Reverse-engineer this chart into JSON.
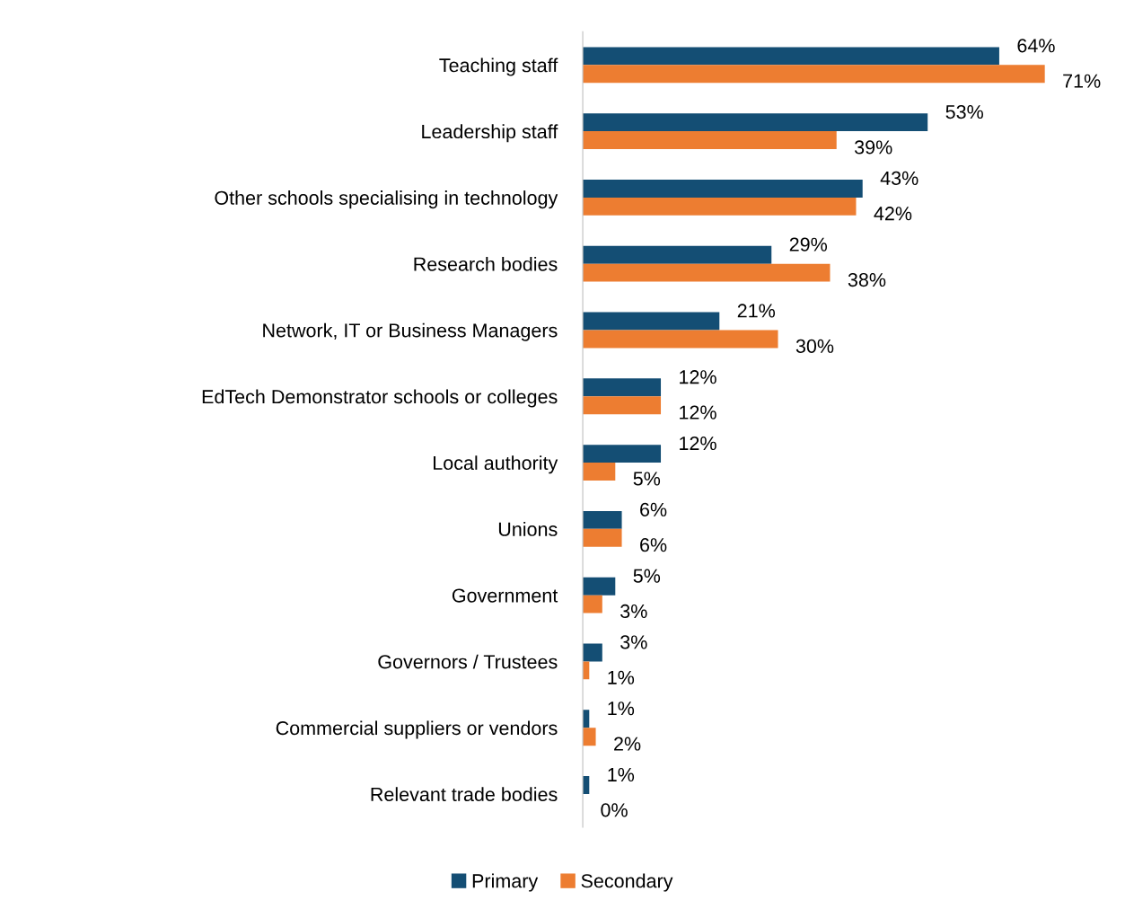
{
  "chart_data": {
    "type": "bar",
    "orientation": "horizontal",
    "categories": [
      "Teaching staff",
      "Leadership staff",
      "Other schools specialising in technology",
      "Research bodies",
      "Network, IT or Business Managers",
      "EdTech Demonstrator schools or colleges",
      "Local authority",
      "Unions",
      "Government",
      "Governors / Trustees",
      "Commercial suppliers or vendors",
      "Relevant trade bodies"
    ],
    "series": [
      {
        "name": "Primary",
        "color": "#144e74",
        "values": [
          64,
          53,
          43,
          29,
          21,
          12,
          12,
          6,
          5,
          3,
          1,
          1
        ],
        "value_labels": [
          "64%",
          "53%",
          "43%",
          "29%",
          "21%",
          "12%",
          "12%",
          "6%",
          "5%",
          "3%",
          "1%",
          "1%"
        ]
      },
      {
        "name": "Secondary",
        "color": "#ed7d31",
        "values": [
          71,
          39,
          42,
          38,
          30,
          12,
          5,
          6,
          3,
          1,
          2,
          0
        ],
        "value_labels": [
          "71%",
          "39%",
          "42%",
          "38%",
          "30%",
          "12%",
          "5%",
          "6%",
          "3%",
          "1%",
          "2%",
          "0%"
        ]
      }
    ],
    "legend": "bottom",
    "grid": false
  }
}
